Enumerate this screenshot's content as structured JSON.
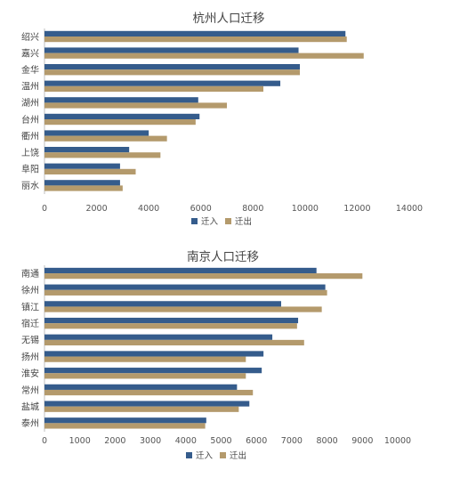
{
  "colors": {
    "in": "#355c8c",
    "out": "#b49a6c"
  },
  "legend": {
    "in": "迁入",
    "out": "迁出"
  },
  "chart_data": [
    {
      "type": "bar",
      "orientation": "horizontal",
      "title": "杭州人口迁移",
      "categories": [
        "绍兴",
        "嘉兴",
        "金华",
        "温州",
        "湖州",
        "台州",
        "衢州",
        "上饶",
        "阜阳",
        "丽水"
      ],
      "series": [
        {
          "name": "迁入",
          "values": [
            11550,
            9750,
            9800,
            9050,
            5900,
            5950,
            4000,
            3250,
            2900,
            2900
          ]
        },
        {
          "name": "迁出",
          "values": [
            11600,
            12250,
            9800,
            8400,
            7000,
            5800,
            4700,
            4450,
            3500,
            3000
          ]
        }
      ],
      "xlim": [
        0,
        14000
      ],
      "ticks": [
        "0",
        "2000",
        "4000",
        "6000",
        "8000",
        "10000",
        "12000",
        "14000"
      ],
      "legend_position": "bottom"
    },
    {
      "type": "bar",
      "orientation": "horizontal",
      "title": "南京人口迁移",
      "categories": [
        "南通",
        "徐州",
        "镇江",
        "宿迁",
        "无锡",
        "扬州",
        "淮安",
        "常州",
        "盐城",
        "泰州"
      ],
      "series": [
        {
          "name": "迁入",
          "values": [
            7700,
            7950,
            6700,
            7180,
            6450,
            6200,
            6150,
            5450,
            5800,
            4580
          ]
        },
        {
          "name": "迁出",
          "values": [
            9000,
            8000,
            7850,
            7150,
            7350,
            5700,
            5700,
            5900,
            5500,
            4550
          ]
        }
      ],
      "xlim": [
        0,
        10000
      ],
      "ticks": [
        "0",
        "1000",
        "2000",
        "3000",
        "4000",
        "5000",
        "6000",
        "7000",
        "8000",
        "9000",
        "10000"
      ],
      "legend_position": "bottom"
    }
  ]
}
